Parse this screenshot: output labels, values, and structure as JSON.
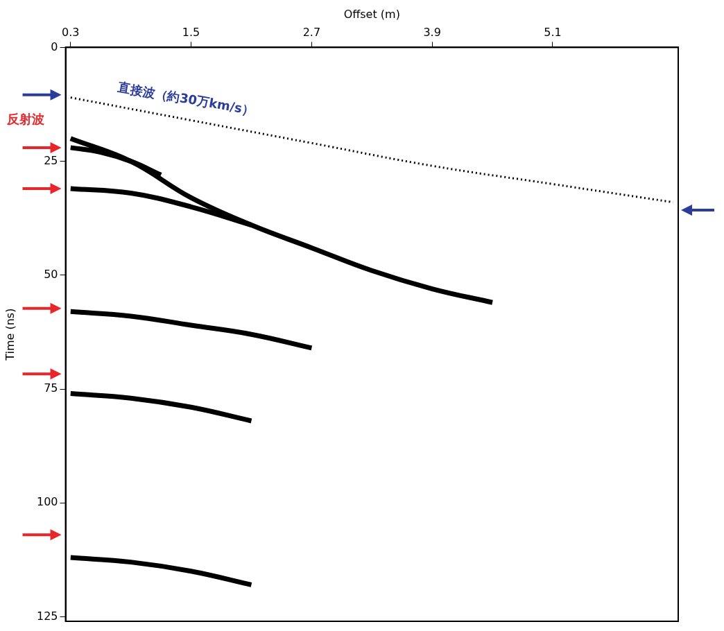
{
  "chart_data": {
    "type": "line",
    "x_label": "Offset (m)",
    "y_label": "Time (ns)",
    "xlim": [
      0.25,
      6.35
    ],
    "xticks": [
      0.3,
      1.5,
      2.7,
      3.9,
      5.1
    ],
    "ylim": [
      0,
      126
    ],
    "yticks": [
      0,
      25,
      50,
      75,
      100,
      125
    ],
    "grid": false,
    "series": [
      {
        "color": "#000000",
        "line_style": "dotted",
        "x": [
          0.3,
          1.5,
          2.7,
          3.9,
          5.1,
          6.3
        ],
        "values": [
          11,
          16,
          21,
          26,
          30,
          34
        ]
      },
      {
        "color": "#000000",
        "line_style": "solid",
        "x": [
          0.3,
          0.9,
          1.5,
          2.1,
          2.7,
          3.3,
          3.9,
          4.5
        ],
        "values": [
          20,
          25,
          33,
          39,
          44,
          49,
          53,
          56
        ]
      },
      {
        "color": "#000000",
        "line_style": "solid",
        "x": [
          0.3,
          0.6,
          0.9,
          1.2
        ],
        "values": [
          22,
          23,
          25,
          28
        ]
      },
      {
        "color": "#000000",
        "line_style": "solid",
        "x": [
          0.3,
          0.9,
          1.5,
          2.1
        ],
        "values": [
          31,
          32,
          35,
          39
        ]
      },
      {
        "color": "#000000",
        "line_style": "solid",
        "x": [
          0.3,
          0.9,
          1.5,
          2.1,
          2.7
        ],
        "values": [
          58,
          59,
          61,
          63,
          66
        ]
      },
      {
        "color": "#000000",
        "line_style": "solid",
        "x": [
          0.3,
          0.9,
          1.5,
          2.1
        ],
        "values": [
          76,
          77,
          79,
          82
        ]
      },
      {
        "color": "#000000",
        "line_style": "solid",
        "x": [
          0.3,
          0.9,
          1.5,
          2.1
        ],
        "values": [
          112,
          113,
          115,
          118
        ]
      }
    ],
    "annotations": [
      {
        "text": "直接波（約30万km/s）",
        "x": 1.45,
        "y": 11.5,
        "color": "#2b3d9c"
      },
      {
        "text": "反射波",
        "x": -0.15,
        "y": 16,
        "color": "#e8262a"
      }
    ],
    "arrows": [
      {
        "y": 10.4,
        "side": "left",
        "color": "#2b3d9c"
      },
      {
        "y": 35.7,
        "side": "right",
        "color": "#2b3d9c"
      },
      {
        "y": 22,
        "side": "left",
        "color": "#e8262a"
      },
      {
        "y": 31,
        "side": "left",
        "color": "#e8262a"
      },
      {
        "y": 57.3,
        "side": "left",
        "color": "#e8262a"
      },
      {
        "y": 71.7,
        "side": "left",
        "color": "#e8262a"
      },
      {
        "y": 107,
        "side": "left",
        "color": "#e8262a"
      }
    ]
  }
}
